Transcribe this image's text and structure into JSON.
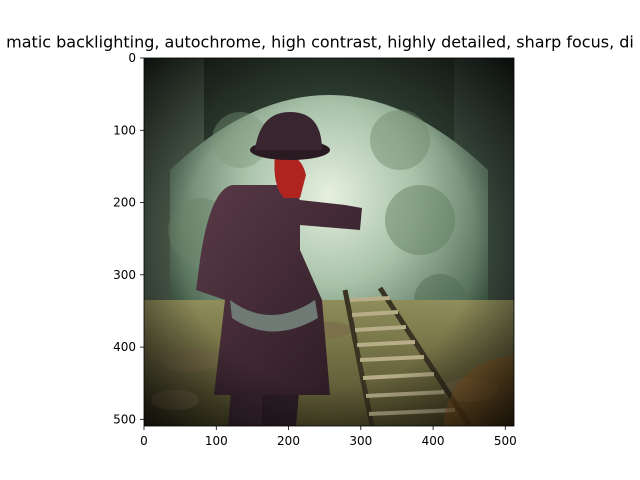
{
  "figure": {
    "title": "matic backlighting, autochrome, high contrast, highly detailed, sharp focus, di",
    "image_subject": "vintage autochrome photograph of a person in a hat and coat walking along an old railway track under a stone archway",
    "x_ticks": [
      "0",
      "100",
      "200",
      "300",
      "400",
      "500"
    ],
    "y_ticks": [
      "0",
      "100",
      "200",
      "300",
      "400",
      "500"
    ],
    "palette": {
      "vignette": "#0b0d0b",
      "arch_light": "#cfe0cf",
      "coat": "#3a2630",
      "face": "#b0241f",
      "ground": "#6f6a3e",
      "warm_corner": "#a3641f"
    }
  }
}
